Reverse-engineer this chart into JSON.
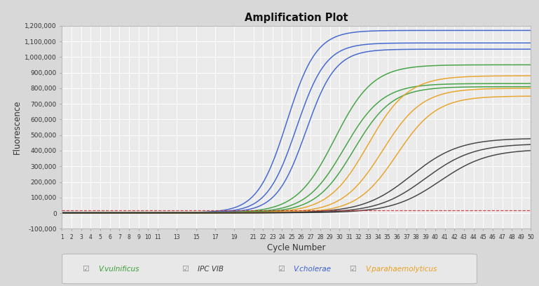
{
  "title": "Amplification Plot",
  "xlabel": "Cycle Number",
  "ylabel": "Fluorescence",
  "xlim": [
    1,
    50
  ],
  "ylim": [
    -100000,
    1200000
  ],
  "threshold": 20000,
  "fig_bg_color": "#d8d8d8",
  "plot_bg_color": "#ebebeb",
  "grid_color": "#ffffff",
  "series_groups": [
    {
      "color": "#3a5fcd",
      "plateau_values": [
        1170000,
        1090000,
        1050000
      ],
      "inflection_cycles": [
        24.5,
        25.5,
        26.5
      ],
      "steepness": [
        0.65,
        0.65,
        0.65
      ],
      "baseline": 3000
    },
    {
      "color": "#3a9e3a",
      "plateau_values": [
        950000,
        830000,
        810000
      ],
      "inflection_cycles": [
        29.5,
        30.5,
        31.5
      ],
      "steepness": [
        0.5,
        0.5,
        0.5
      ],
      "baseline": 2000
    },
    {
      "color": "#e8a020",
      "plateau_values": [
        880000,
        800000,
        750000
      ],
      "inflection_cycles": [
        33.0,
        34.5,
        36.0
      ],
      "steepness": [
        0.48,
        0.48,
        0.48
      ],
      "baseline": 2000
    },
    {
      "color": "#3a3a3a",
      "plateau_values": [
        480000,
        445000,
        410000
      ],
      "inflection_cycles": [
        37.5,
        39.0,
        40.5
      ],
      "steepness": [
        0.4,
        0.4,
        0.4
      ],
      "baseline": 2000
    }
  ],
  "ytick_vals": [
    -100000,
    0,
    100000,
    200000,
    300000,
    400000,
    500000,
    600000,
    700000,
    800000,
    900000,
    1000000,
    1100000,
    1200000
  ],
  "ytick_labels": [
    "-100,000",
    "0",
    "100,000",
    "200,000",
    "300,000",
    "400,000",
    "500,000",
    "600,000",
    "700,000",
    "800,000",
    "900,000",
    "1,000,000",
    "1,100,000",
    "1,200,000"
  ],
  "xtick_vals": [
    1,
    2,
    3,
    4,
    5,
    6,
    7,
    8,
    9,
    10,
    11,
    13,
    15,
    17,
    19,
    21,
    22,
    23,
    24,
    25,
    26,
    27,
    28,
    29,
    30,
    31,
    32,
    33,
    34,
    35,
    36,
    37,
    38,
    39,
    40,
    41,
    42,
    43,
    44,
    45,
    46,
    47,
    48,
    49,
    50
  ],
  "legend_items": [
    {
      "label": "V.vulnificus",
      "color": "#3a9e3a"
    },
    {
      "label": "IPC VIB",
      "color": "#3a3a3a"
    },
    {
      "label": "V.cholerae",
      "color": "#3a5fcd"
    },
    {
      "label": "V.parahaemolyticus",
      "color": "#e8a020"
    }
  ]
}
